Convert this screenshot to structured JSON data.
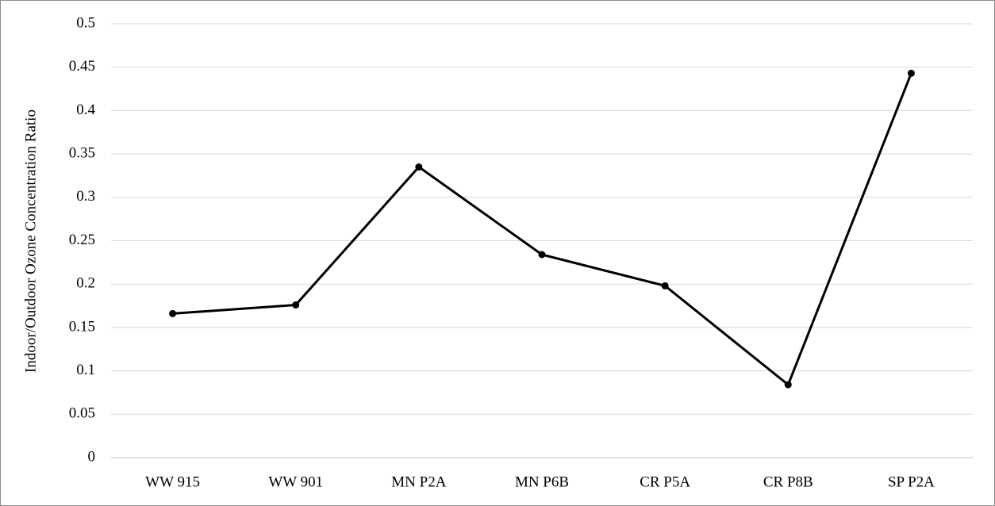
{
  "chart_data": {
    "type": "line",
    "y_label": "Indoor/Outdoor Ozone Concentration Ratio",
    "categories": [
      "WW 915",
      "WW 901",
      "MN P2A",
      "MN P6B",
      "CR P5A",
      "CR P8B",
      "SP P2A"
    ],
    "values": [
      0.166,
      0.176,
      0.335,
      0.234,
      0.198,
      0.084,
      0.443
    ],
    "color": "#000000",
    "ylim": [
      0,
      0.5
    ],
    "yticks": [
      0,
      0.05,
      0.1,
      0.15,
      0.2,
      0.25,
      0.3,
      0.35,
      0.4,
      0.45,
      0.5
    ],
    "grid": true
  }
}
